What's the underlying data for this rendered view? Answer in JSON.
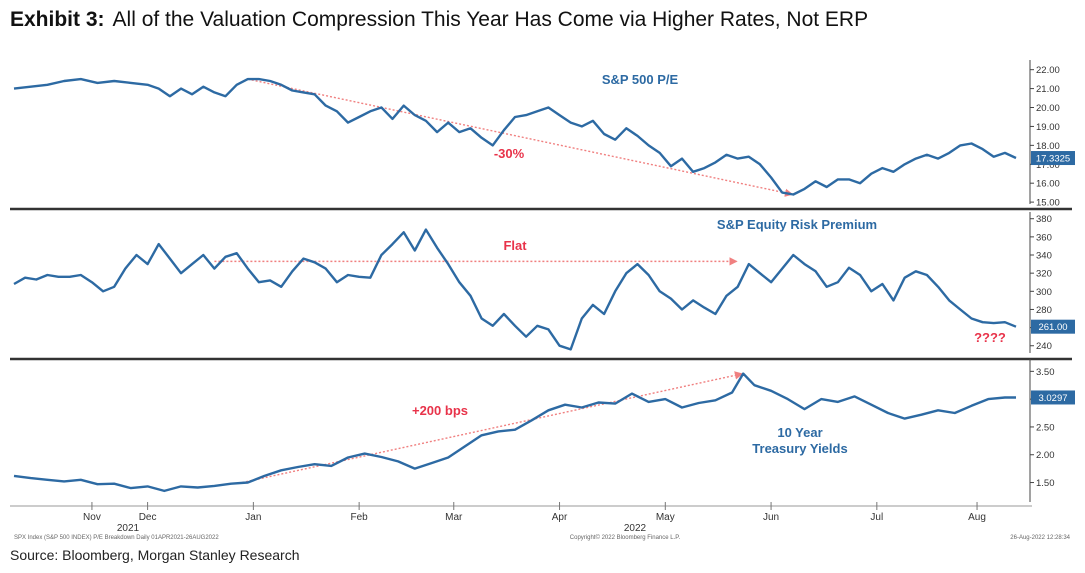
{
  "header": {
    "exhibit_label": "Exhibit 3:",
    "title": "All of the Valuation Compression This Year Has Come via Higher Rates, Not ERP"
  },
  "footer": {
    "source": "Source: Bloomberg, Morgan Stanley Research",
    "terminal_left": "SPX Index (S&P 500 INDEX) P/E Breakdown  Daily 01APR2021-26AUG2022",
    "terminal_center": "Copyright© 2022 Bloomberg Finance L.P.",
    "terminal_right": "26-Aug-2022 12:28:34"
  },
  "colors": {
    "line": "#2d6aa3",
    "annotation": "#e8334a",
    "trend_arrow": "#f08080",
    "last_value_box": "#2d6aa3",
    "divider": "#333333"
  },
  "chart_data": {
    "type": "line",
    "x_months": [
      "Nov",
      "Dec",
      "Jan",
      "Feb",
      "Mar",
      "Apr",
      "May",
      "Jun",
      "Jul",
      "Aug"
    ],
    "x_years": [
      "2021",
      "2022"
    ],
    "panels": [
      {
        "title": "S&P 500 P/E",
        "y_ticks": [
          "22.00",
          "21.00",
          "20.00",
          "19.00",
          "18.00",
          "17.00",
          "16.00",
          "15.00"
        ],
        "ylim": [
          14.9,
          22.3
        ],
        "last_value_label": "17.3325",
        "annotation": "-30%",
        "series": [
          {
            "x": 0,
            "y": 21.0
          },
          {
            "x": 3,
            "y": 21.1
          },
          {
            "x": 6,
            "y": 21.2
          },
          {
            "x": 9,
            "y": 21.4
          },
          {
            "x": 12,
            "y": 21.5
          },
          {
            "x": 15,
            "y": 21.3
          },
          {
            "x": 18,
            "y": 21.4
          },
          {
            "x": 21,
            "y": 21.3
          },
          {
            "x": 24,
            "y": 21.2
          },
          {
            "x": 26,
            "y": 21.0
          },
          {
            "x": 28,
            "y": 20.6
          },
          {
            "x": 30,
            "y": 21.0
          },
          {
            "x": 32,
            "y": 20.7
          },
          {
            "x": 34,
            "y": 21.1
          },
          {
            "x": 36,
            "y": 20.8
          },
          {
            "x": 38,
            "y": 20.6
          },
          {
            "x": 40,
            "y": 21.2
          },
          {
            "x": 42,
            "y": 21.5
          },
          {
            "x": 44,
            "y": 21.5
          },
          {
            "x": 46,
            "y": 21.4
          },
          {
            "x": 48,
            "y": 21.2
          },
          {
            "x": 50,
            "y": 20.9
          },
          {
            "x": 52,
            "y": 20.8
          },
          {
            "x": 54,
            "y": 20.7
          },
          {
            "x": 56,
            "y": 20.1
          },
          {
            "x": 58,
            "y": 19.8
          },
          {
            "x": 60,
            "y": 19.2
          },
          {
            "x": 62,
            "y": 19.5
          },
          {
            "x": 64,
            "y": 19.8
          },
          {
            "x": 66,
            "y": 20.0
          },
          {
            "x": 68,
            "y": 19.4
          },
          {
            "x": 70,
            "y": 20.1
          },
          {
            "x": 72,
            "y": 19.6
          },
          {
            "x": 74,
            "y": 19.3
          },
          {
            "x": 76,
            "y": 18.7
          },
          {
            "x": 78,
            "y": 19.2
          },
          {
            "x": 80,
            "y": 18.7
          },
          {
            "x": 82,
            "y": 18.9
          },
          {
            "x": 84,
            "y": 18.4
          },
          {
            "x": 86,
            "y": 18.0
          },
          {
            "x": 88,
            "y": 18.8
          },
          {
            "x": 90,
            "y": 19.5
          },
          {
            "x": 92,
            "y": 19.6
          },
          {
            "x": 94,
            "y": 19.8
          },
          {
            "x": 96,
            "y": 20.0
          },
          {
            "x": 98,
            "y": 19.6
          },
          {
            "x": 100,
            "y": 19.2
          },
          {
            "x": 102,
            "y": 19.0
          },
          {
            "x": 104,
            "y": 19.3
          },
          {
            "x": 106,
            "y": 18.6
          },
          {
            "x": 108,
            "y": 18.3
          },
          {
            "x": 110,
            "y": 18.9
          },
          {
            "x": 112,
            "y": 18.5
          },
          {
            "x": 114,
            "y": 18.0
          },
          {
            "x": 116,
            "y": 17.6
          },
          {
            "x": 118,
            "y": 16.9
          },
          {
            "x": 120,
            "y": 17.3
          },
          {
            "x": 122,
            "y": 16.6
          },
          {
            "x": 124,
            "y": 16.8
          },
          {
            "x": 126,
            "y": 17.1
          },
          {
            "x": 128,
            "y": 17.5
          },
          {
            "x": 130,
            "y": 17.3
          },
          {
            "x": 132,
            "y": 17.4
          },
          {
            "x": 134,
            "y": 17.0
          },
          {
            "x": 136,
            "y": 16.3
          },
          {
            "x": 138,
            "y": 15.5
          },
          {
            "x": 140,
            "y": 15.4
          },
          {
            "x": 142,
            "y": 15.7
          },
          {
            "x": 144,
            "y": 16.1
          },
          {
            "x": 146,
            "y": 15.8
          },
          {
            "x": 148,
            "y": 16.2
          },
          {
            "x": 150,
            "y": 16.2
          },
          {
            "x": 152,
            "y": 16.0
          },
          {
            "x": 154,
            "y": 16.5
          },
          {
            "x": 156,
            "y": 16.8
          },
          {
            "x": 158,
            "y": 16.6
          },
          {
            "x": 160,
            "y": 17.0
          },
          {
            "x": 162,
            "y": 17.3
          },
          {
            "x": 164,
            "y": 17.5
          },
          {
            "x": 166,
            "y": 17.3
          },
          {
            "x": 168,
            "y": 17.6
          },
          {
            "x": 170,
            "y": 18.0
          },
          {
            "x": 172,
            "y": 18.1
          },
          {
            "x": 174,
            "y": 17.8
          },
          {
            "x": 176,
            "y": 17.4
          },
          {
            "x": 178,
            "y": 17.6
          },
          {
            "x": 180,
            "y": 17.33
          }
        ],
        "trend": {
          "from": {
            "x": 42,
            "y": 21.5
          },
          "to": {
            "x": 140,
            "y": 15.4
          }
        }
      },
      {
        "title": "S&P Equity Risk Premium",
        "y_ticks": [
          "380",
          "360",
          "340",
          "320",
          "300",
          "280",
          "260",
          "240"
        ],
        "ylim": [
          232,
          383
        ],
        "last_value_label": "261.00",
        "annotation": "Flat",
        "annotation2": "????",
        "series": [
          {
            "x": 0,
            "y": 308
          },
          {
            "x": 2,
            "y": 315
          },
          {
            "x": 4,
            "y": 313
          },
          {
            "x": 6,
            "y": 318
          },
          {
            "x": 8,
            "y": 316
          },
          {
            "x": 10,
            "y": 316
          },
          {
            "x": 12,
            "y": 318
          },
          {
            "x": 14,
            "y": 310
          },
          {
            "x": 16,
            "y": 300
          },
          {
            "x": 18,
            "y": 305
          },
          {
            "x": 20,
            "y": 325
          },
          {
            "x": 22,
            "y": 340
          },
          {
            "x": 24,
            "y": 330
          },
          {
            "x": 26,
            "y": 352
          },
          {
            "x": 28,
            "y": 336
          },
          {
            "x": 30,
            "y": 320
          },
          {
            "x": 32,
            "y": 330
          },
          {
            "x": 34,
            "y": 340
          },
          {
            "x": 36,
            "y": 325
          },
          {
            "x": 38,
            "y": 338
          },
          {
            "x": 40,
            "y": 342
          },
          {
            "x": 42,
            "y": 325
          },
          {
            "x": 44,
            "y": 310
          },
          {
            "x": 46,
            "y": 312
          },
          {
            "x": 48,
            "y": 305
          },
          {
            "x": 50,
            "y": 322
          },
          {
            "x": 52,
            "y": 336
          },
          {
            "x": 54,
            "y": 332
          },
          {
            "x": 56,
            "y": 325
          },
          {
            "x": 58,
            "y": 310
          },
          {
            "x": 60,
            "y": 318
          },
          {
            "x": 62,
            "y": 316
          },
          {
            "x": 64,
            "y": 315
          },
          {
            "x": 66,
            "y": 340
          },
          {
            "x": 68,
            "y": 352
          },
          {
            "x": 70,
            "y": 365
          },
          {
            "x": 72,
            "y": 345
          },
          {
            "x": 74,
            "y": 368
          },
          {
            "x": 76,
            "y": 348
          },
          {
            "x": 78,
            "y": 330
          },
          {
            "x": 80,
            "y": 310
          },
          {
            "x": 82,
            "y": 295
          },
          {
            "x": 84,
            "y": 270
          },
          {
            "x": 86,
            "y": 262
          },
          {
            "x": 88,
            "y": 275
          },
          {
            "x": 90,
            "y": 262
          },
          {
            "x": 92,
            "y": 250
          },
          {
            "x": 94,
            "y": 262
          },
          {
            "x": 96,
            "y": 258
          },
          {
            "x": 98,
            "y": 240
          },
          {
            "x": 100,
            "y": 236
          },
          {
            "x": 102,
            "y": 270
          },
          {
            "x": 104,
            "y": 285
          },
          {
            "x": 106,
            "y": 275
          },
          {
            "x": 108,
            "y": 300
          },
          {
            "x": 110,
            "y": 320
          },
          {
            "x": 112,
            "y": 330
          },
          {
            "x": 114,
            "y": 318
          },
          {
            "x": 116,
            "y": 300
          },
          {
            "x": 118,
            "y": 292
          },
          {
            "x": 120,
            "y": 280
          },
          {
            "x": 122,
            "y": 290
          },
          {
            "x": 124,
            "y": 282
          },
          {
            "x": 126,
            "y": 275
          },
          {
            "x": 128,
            "y": 295
          },
          {
            "x": 130,
            "y": 305
          },
          {
            "x": 132,
            "y": 330
          },
          {
            "x": 134,
            "y": 320
          },
          {
            "x": 136,
            "y": 310
          },
          {
            "x": 138,
            "y": 325
          },
          {
            "x": 140,
            "y": 340
          },
          {
            "x": 142,
            "y": 330
          },
          {
            "x": 144,
            "y": 322
          },
          {
            "x": 146,
            "y": 305
          },
          {
            "x": 148,
            "y": 310
          },
          {
            "x": 150,
            "y": 326
          },
          {
            "x": 152,
            "y": 318
          },
          {
            "x": 154,
            "y": 300
          },
          {
            "x": 156,
            "y": 308
          },
          {
            "x": 158,
            "y": 290
          },
          {
            "x": 160,
            "y": 315
          },
          {
            "x": 162,
            "y": 322
          },
          {
            "x": 164,
            "y": 318
          },
          {
            "x": 166,
            "y": 305
          },
          {
            "x": 168,
            "y": 290
          },
          {
            "x": 170,
            "y": 280
          },
          {
            "x": 172,
            "y": 270
          },
          {
            "x": 174,
            "y": 266
          },
          {
            "x": 176,
            "y": 265
          },
          {
            "x": 178,
            "y": 266
          },
          {
            "x": 180,
            "y": 261
          }
        ],
        "trend": {
          "from": {
            "x": 36,
            "y": 333
          },
          "to": {
            "x": 130,
            "y": 333
          }
        }
      },
      {
        "title": "10 Year Treasury Yields",
        "y_ticks": [
          "3.50",
          "3.00",
          "2.50",
          "2.00",
          "1.50"
        ],
        "ylim": [
          1.15,
          3.65
        ],
        "last_value_label": "3.0297",
        "annotation": "+200 bps",
        "series": [
          {
            "x": 0,
            "y": 1.62
          },
          {
            "x": 3,
            "y": 1.58
          },
          {
            "x": 6,
            "y": 1.55
          },
          {
            "x": 9,
            "y": 1.52
          },
          {
            "x": 12,
            "y": 1.55
          },
          {
            "x": 15,
            "y": 1.47
          },
          {
            "x": 18,
            "y": 1.48
          },
          {
            "x": 21,
            "y": 1.4
          },
          {
            "x": 24,
            "y": 1.43
          },
          {
            "x": 27,
            "y": 1.35
          },
          {
            "x": 30,
            "y": 1.43
          },
          {
            "x": 33,
            "y": 1.41
          },
          {
            "x": 36,
            "y": 1.44
          },
          {
            "x": 39,
            "y": 1.48
          },
          {
            "x": 42,
            "y": 1.5
          },
          {
            "x": 45,
            "y": 1.62
          },
          {
            "x": 48,
            "y": 1.72
          },
          {
            "x": 51,
            "y": 1.78
          },
          {
            "x": 54,
            "y": 1.83
          },
          {
            "x": 57,
            "y": 1.8
          },
          {
            "x": 60,
            "y": 1.95
          },
          {
            "x": 63,
            "y": 2.02
          },
          {
            "x": 66,
            "y": 1.96
          },
          {
            "x": 69,
            "y": 1.88
          },
          {
            "x": 72,
            "y": 1.75
          },
          {
            "x": 75,
            "y": 1.85
          },
          {
            "x": 78,
            "y": 1.95
          },
          {
            "x": 81,
            "y": 2.15
          },
          {
            "x": 84,
            "y": 2.35
          },
          {
            "x": 87,
            "y": 2.42
          },
          {
            "x": 90,
            "y": 2.45
          },
          {
            "x": 93,
            "y": 2.62
          },
          {
            "x": 96,
            "y": 2.8
          },
          {
            "x": 99,
            "y": 2.9
          },
          {
            "x": 102,
            "y": 2.85
          },
          {
            "x": 105,
            "y": 2.94
          },
          {
            "x": 108,
            "y": 2.92
          },
          {
            "x": 111,
            "y": 3.1
          },
          {
            "x": 114,
            "y": 2.95
          },
          {
            "x": 117,
            "y": 3.0
          },
          {
            "x": 120,
            "y": 2.85
          },
          {
            "x": 123,
            "y": 2.93
          },
          {
            "x": 126,
            "y": 2.98
          },
          {
            "x": 129,
            "y": 3.12
          },
          {
            "x": 131,
            "y": 3.46
          },
          {
            "x": 133,
            "y": 3.25
          },
          {
            "x": 136,
            "y": 3.15
          },
          {
            "x": 139,
            "y": 3.0
          },
          {
            "x": 142,
            "y": 2.82
          },
          {
            "x": 145,
            "y": 3.0
          },
          {
            "x": 148,
            "y": 2.95
          },
          {
            "x": 151,
            "y": 3.05
          },
          {
            "x": 154,
            "y": 2.9
          },
          {
            "x": 157,
            "y": 2.75
          },
          {
            "x": 160,
            "y": 2.65
          },
          {
            "x": 163,
            "y": 2.72
          },
          {
            "x": 166,
            "y": 2.8
          },
          {
            "x": 169,
            "y": 2.75
          },
          {
            "x": 172,
            "y": 2.88
          },
          {
            "x": 175,
            "y": 3.0
          },
          {
            "x": 178,
            "y": 3.03
          },
          {
            "x": 180,
            "y": 3.03
          }
        ],
        "trend": {
          "from": {
            "x": 41,
            "y": 1.5
          },
          "to": {
            "x": 131,
            "y": 3.46
          }
        }
      }
    ]
  }
}
